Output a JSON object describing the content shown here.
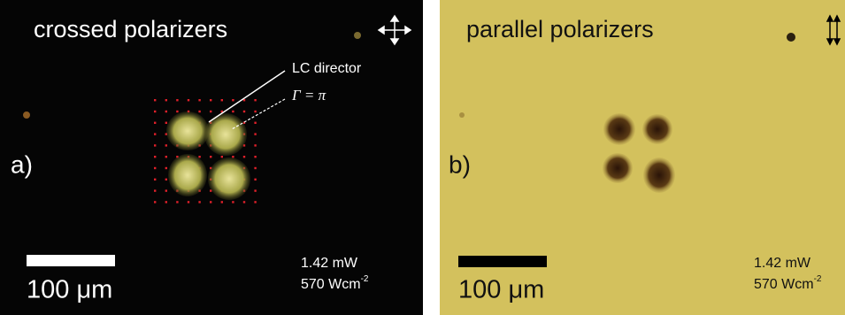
{
  "panels": [
    {
      "label": "a)",
      "title": "crossed polarizers",
      "annotations": [
        "LC director",
        "Γ = π"
      ],
      "scale_bar": "100 μm",
      "power": "1.42 mW",
      "intensity": "570 Wcm",
      "intensity_exponent": "-2"
    },
    {
      "label": "b)",
      "title": "parallel polarizers",
      "scale_bar": "100 μm",
      "power": "1.42 mW",
      "intensity": "570 Wcm",
      "intensity_exponent": "-2"
    }
  ]
}
